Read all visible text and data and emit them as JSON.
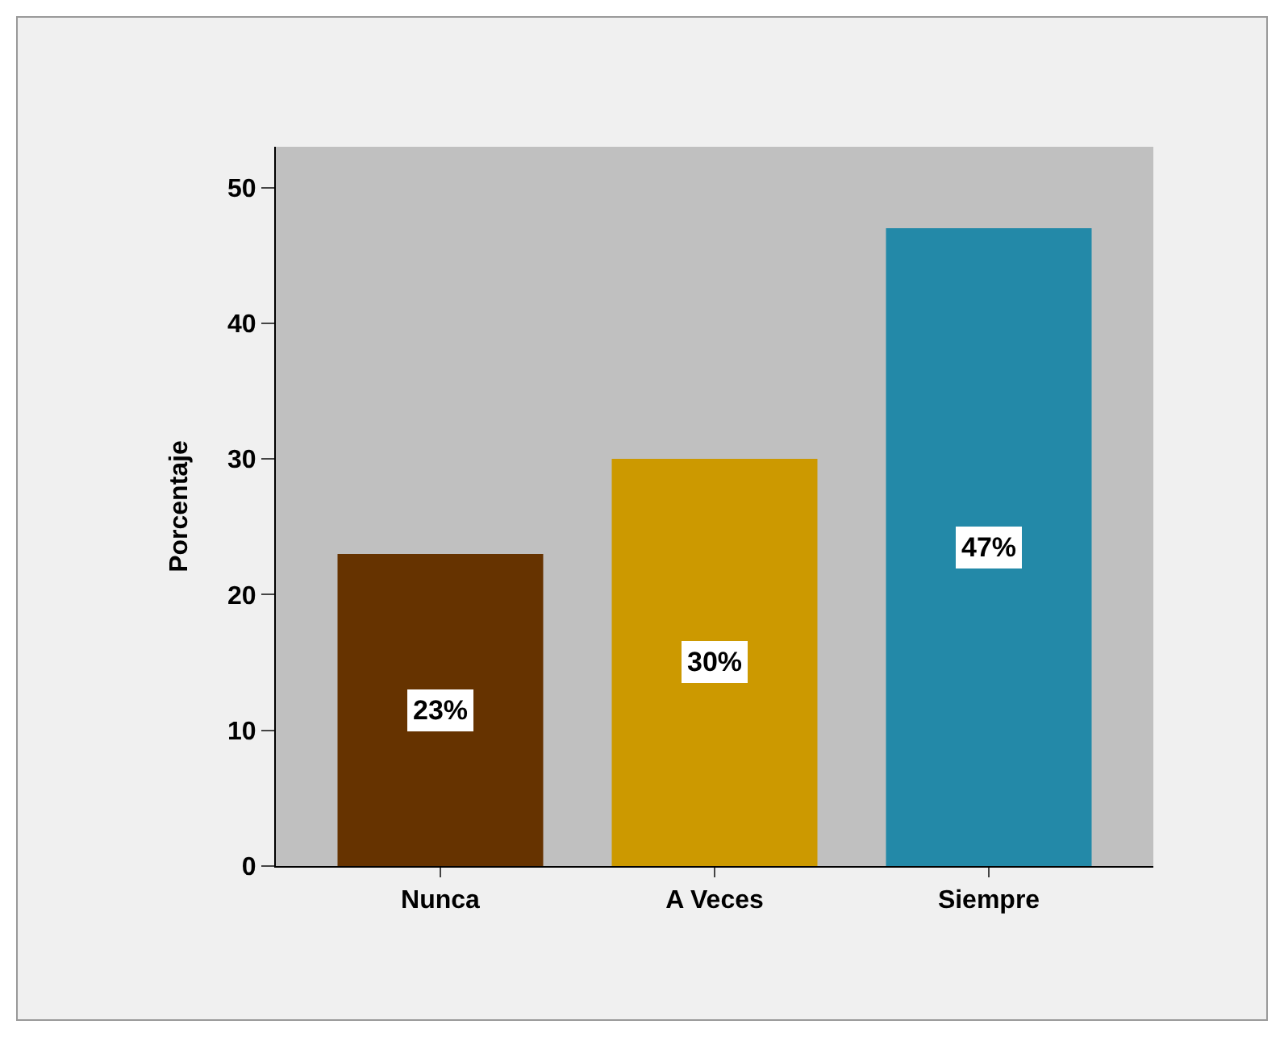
{
  "chart_data": {
    "type": "bar",
    "ylabel": "Porcentaje",
    "categories": [
      "Nunca",
      "A Veces",
      "Siempre"
    ],
    "values": [
      23,
      30,
      47
    ],
    "colors": [
      "#663300",
      "#cc9900",
      "#2389a8"
    ],
    "value_labels": [
      "23%",
      "30%",
      "47%"
    ],
    "ylim": [
      0,
      53
    ],
    "yticks": [
      0,
      10,
      20,
      30,
      40,
      50
    ],
    "grid": false
  }
}
